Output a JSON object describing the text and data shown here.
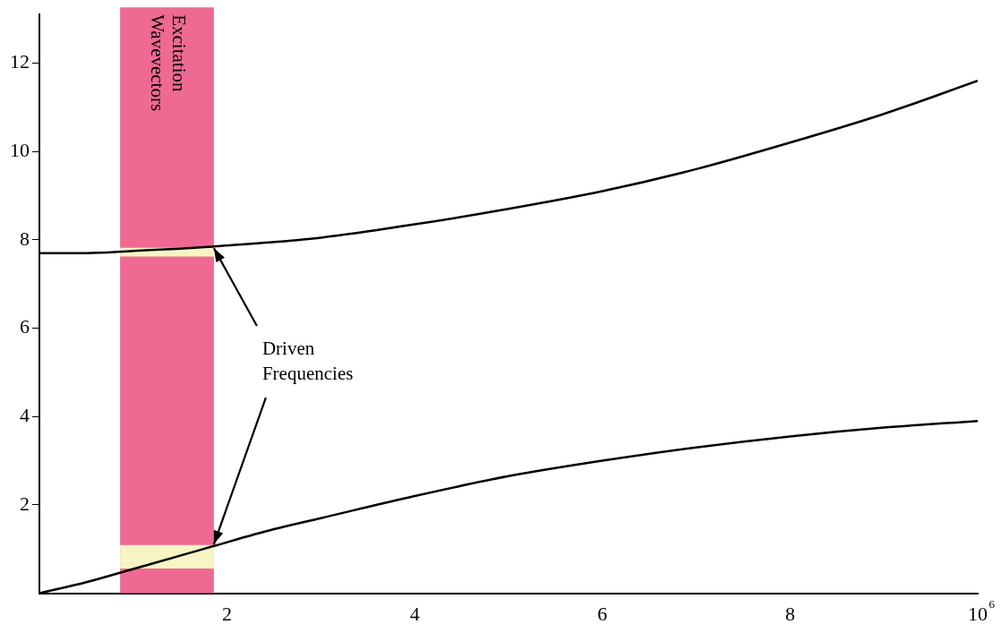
{
  "chart_data": {
    "type": "line",
    "xlim": [
      0,
      10
    ],
    "ylim": [
      0,
      13.1
    ],
    "xticks": [
      2,
      4,
      6,
      8,
      10
    ],
    "yticks": [
      2,
      4,
      6,
      8,
      10,
      12
    ],
    "x": [
      0,
      0.5,
      1,
      1.5,
      1.86,
      2.5,
      3,
      4,
      5,
      6,
      7,
      8,
      9,
      10
    ],
    "series": [
      {
        "color": "#000000",
        "values": [
          7.7,
          7.7,
          7.75,
          7.8,
          7.85,
          7.95,
          8.05,
          8.35,
          8.7,
          9.1,
          9.6,
          10.2,
          10.85,
          11.6
        ]
      },
      {
        "color": "#000000",
        "values": [
          0,
          0.25,
          0.55,
          0.85,
          1.07,
          1.45,
          1.7,
          2.2,
          2.65,
          3.0,
          3.3,
          3.55,
          3.75,
          3.9
        ]
      }
    ],
    "marker": "none",
    "line_style": "solid",
    "grid": false,
    "legend": false,
    "bands": [
      {
        "axis": "x",
        "from": 0.86,
        "to": 1.86,
        "label": "Excitation Wavevectors",
        "color": "#ee6a92"
      },
      {
        "axis": "y",
        "from": 7.62,
        "to": 7.82,
        "color": "#f7f5c4"
      },
      {
        "axis": "y",
        "from": 0.56,
        "to": 1.09,
        "color": "#f7f5c4"
      }
    ],
    "annotations": [
      {
        "text": "Driven Frequencies",
        "x": 1.86,
        "y": 7.85
      },
      "⁶"
    ]
  }
}
